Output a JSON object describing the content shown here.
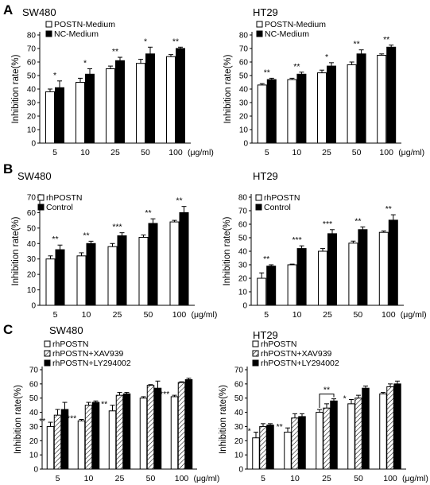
{
  "figure": {
    "panel_labels": [
      "A",
      "B",
      "C"
    ],
    "x_unit": "(μg/ml)"
  },
  "chart_data": [
    {
      "id": "A-SW480",
      "panel": "A",
      "title": "SW480",
      "type": "bar",
      "ylabel": "Inhibition rate(%)",
      "ylim": [
        0,
        80
      ],
      "yticks": [
        0,
        10,
        20,
        30,
        40,
        50,
        60,
        70,
        80
      ],
      "categories": [
        "5",
        "10",
        "25",
        "50",
        "100"
      ],
      "series": [
        {
          "name": "POSTN-Medium",
          "fill": "#ffffff",
          "pattern": "none",
          "values": [
            38,
            45,
            55,
            59,
            64
          ],
          "errors": [
            2,
            3,
            2,
            3,
            1.5
          ]
        },
        {
          "name": "NC-Medium",
          "fill": "#000000",
          "pattern": "none",
          "values": [
            41,
            51,
            61,
            66,
            70
          ],
          "errors": [
            5,
            4,
            2.5,
            5,
            1
          ]
        }
      ],
      "significance": [
        "*",
        "*",
        "**",
        "*",
        "**"
      ],
      "legend_location": "top-left"
    },
    {
      "id": "A-HT29",
      "panel": "A",
      "title": "HT29",
      "type": "bar",
      "ylabel": "Inhibition rate(%)",
      "ylim": [
        0,
        80
      ],
      "yticks": [
        0,
        10,
        20,
        30,
        40,
        50,
        60,
        70,
        80
      ],
      "categories": [
        "5",
        "10",
        "25",
        "50",
        "100"
      ],
      "series": [
        {
          "name": "POSTN-Medium",
          "fill": "#ffffff",
          "pattern": "none",
          "values": [
            43,
            47,
            52,
            58,
            65
          ],
          "errors": [
            1,
            1,
            2,
            2,
            1
          ]
        },
        {
          "name": "NC-Medium",
          "fill": "#000000",
          "pattern": "none",
          "values": [
            47,
            51,
            57,
            66,
            71
          ],
          "errors": [
            1,
            1.5,
            2.5,
            3,
            1.5
          ]
        }
      ],
      "significance": [
        "**",
        "**",
        "*",
        "**",
        "**"
      ],
      "legend_location": "top-left"
    },
    {
      "id": "B-SW480",
      "panel": "B",
      "title": "SW480",
      "type": "bar",
      "ylabel": "Inhibition rate(%)",
      "ylim": [
        0,
        70
      ],
      "yticks": [
        0,
        10,
        20,
        30,
        40,
        50,
        60,
        70
      ],
      "categories": [
        "5",
        "10",
        "25",
        "50",
        "100"
      ],
      "series": [
        {
          "name": "rhPOSTN",
          "fill": "#ffffff",
          "pattern": "none",
          "values": [
            30,
            32,
            38,
            44,
            54
          ],
          "errors": [
            2,
            2,
            2,
            1.5,
            1
          ]
        },
        {
          "name": "Control",
          "fill": "#000000",
          "pattern": "none",
          "values": [
            36,
            40,
            45,
            53,
            60
          ],
          "errors": [
            3,
            1.5,
            2,
            3,
            4
          ]
        }
      ],
      "significance": [
        "**",
        "**",
        "***",
        "**",
        "**"
      ],
      "legend_location": "top-left"
    },
    {
      "id": "B-HT29",
      "panel": "B",
      "title": "HT29",
      "type": "bar",
      "ylabel": "Inhibition rate(%)",
      "ylim": [
        0,
        80
      ],
      "yticks": [
        0,
        10,
        20,
        30,
        40,
        50,
        60,
        70,
        80
      ],
      "categories": [
        "5",
        "10",
        "25",
        "50",
        "100"
      ],
      "series": [
        {
          "name": "rhPOSTN",
          "fill": "#ffffff",
          "pattern": "none",
          "values": [
            20,
            30,
            40,
            46,
            54
          ],
          "errors": [
            4,
            0.5,
            2,
            1.5,
            1
          ]
        },
        {
          "name": "Control",
          "fill": "#000000",
          "pattern": "none",
          "values": [
            29,
            42,
            53,
            56,
            63
          ],
          "errors": [
            1,
            2,
            3,
            2,
            4
          ]
        }
      ],
      "significance": [
        "**",
        "***",
        "***",
        "**",
        "**"
      ],
      "legend_location": "top-left"
    },
    {
      "id": "C-SW480",
      "panel": "C",
      "title": "SW480",
      "type": "bar",
      "ylabel": "Inhibition rate(%)",
      "ylim": [
        0,
        70
      ],
      "yticks": [
        0,
        10,
        20,
        30,
        40,
        50,
        60,
        70
      ],
      "categories": [
        "5",
        "10",
        "25",
        "50",
        "100"
      ],
      "series": [
        {
          "name": "rhPOSTN",
          "fill": "#ffffff",
          "pattern": "none",
          "values": [
            30,
            34,
            41,
            50,
            51
          ],
          "errors": [
            3,
            1,
            4,
            1,
            1
          ]
        },
        {
          "name": "rhPOSTN+XAV939",
          "fill": "#ffffff",
          "pattern": "hatch",
          "values": [
            38,
            45,
            52,
            59,
            61
          ],
          "errors": [
            4,
            2,
            2,
            0.5,
            0.5
          ]
        },
        {
          "name": "rhPOSTN+LY294002",
          "fill": "#000000",
          "pattern": "none",
          "values": [
            42,
            47,
            53,
            57,
            63
          ],
          "errors": [
            5,
            1,
            1,
            5,
            1
          ]
        }
      ],
      "significance": [
        "**",
        "***",
        "**",
        "",
        "***"
      ],
      "legend_location": "top-left"
    },
    {
      "id": "C-HT29",
      "panel": "C",
      "title": "HT29",
      "type": "bar",
      "ylabel": "Inhibition rate(%)",
      "ylim": [
        0,
        70
      ],
      "yticks": [
        0,
        10,
        20,
        30,
        40,
        50,
        60,
        70
      ],
      "categories": [
        "5",
        "10",
        "25",
        "50",
        "100"
      ],
      "series": [
        {
          "name": "rhPOSTN",
          "fill": "#ffffff",
          "pattern": "none",
          "values": [
            22,
            26,
            40,
            46,
            53
          ],
          "errors": [
            4,
            3,
            2,
            3,
            1
          ]
        },
        {
          "name": "rhPOSTN+XAV939",
          "fill": "#ffffff",
          "pattern": "hatch",
          "values": [
            30,
            36,
            43,
            50,
            58
          ],
          "errors": [
            2,
            3,
            3,
            2,
            2
          ]
        },
        {
          "name": "rhPOSTN+LY294002",
          "fill": "#000000",
          "pattern": "none",
          "values": [
            31,
            37,
            48,
            57,
            60
          ],
          "errors": [
            1,
            2,
            1.5,
            1.5,
            2
          ]
        }
      ],
      "significance": [
        "*",
        "**",
        "",
        "*",
        ""
      ],
      "bracket": {
        "category_index": 2,
        "from_series": 0,
        "to_series": 2,
        "label": "**"
      },
      "legend_location": "top-left"
    }
  ]
}
